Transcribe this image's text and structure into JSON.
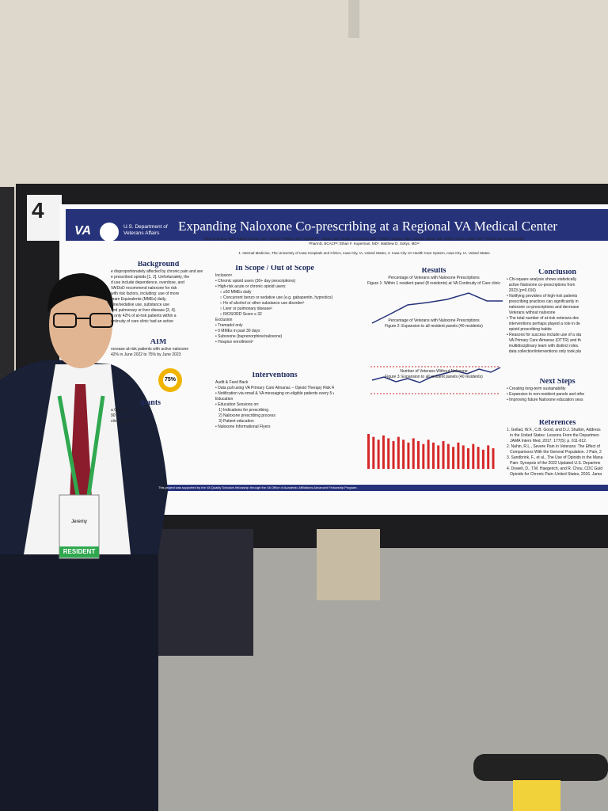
{
  "poster": {
    "number": "4",
    "header": {
      "logo": "VA",
      "agency": "U.S. Department of Veterans Affairs",
      "title": "Expanding Naloxone Co-prescribing at a Regional VA Medical Center",
      "authors": "Jeremy Zhang, MD¹; Kathie Zhang, MD¹; Joseph Phillips, MD¹; Michael C. Sauer, MD¹; Sarah Van Doren, MD¹; Patrick Watson, MD¹; Lauren Zabel, MD¹ Emily Peters, MSN, RN²; Yvonne De Hoover Koch, PharmD, BCACP²; Ethan F. Kuperman, MD¹; Matthew D. Soltys, MD¹²",
      "affiliations": "1. Internal Medicine, The University of Iowa Hospitals and Clinics, Iowa City, IA, United States, 2. Iowa City VA Health Care System, Iowa City, IA, United States"
    },
    "sections": [
      {
        "heading": "Background",
        "lines": [
          "e disproportionately affected by chronic pain and are",
          "e prescribed opioids [1, 2]. Unfortunately, the",
          "d use include dependence, overdose, and",
          "VA/DoD recommend naloxone for risk",
          "with risk factors, including: use of more",
          "gram Equivalents (MMEs) daily,",
          "pine/sedative use, substance use",
          "and pulmonary or liver disease [3, 4].",
          "d only 42% of at-risk patients within a",
          "ontinuity of care clinic had an active"
        ]
      },
      {
        "heading": "AIM",
        "lines": [
          "ncrease at-risk patients with active naloxone",
          "42% in June 2022 to 75% by June 2023"
        ]
      },
      {
        "heading": "ipants",
        "lines": [
          "a Glance",
          "90",
          "ctive Opioid Rx"
        ]
      },
      {
        "heading": "In Scope / Out of Scope",
        "lines": [
          "Inclusion¹",
          "• Chronic opioid users (30+ day prescriptions)",
          "• High-risk acute or chronic opioid users:",
          "    ○ ≥50 MMEs daily",
          "    ○ Concurrent benzo or sedative use (e.g. gabapentin, hypnotics)",
          "    ○ Hx of alcohol or other substance use disorder²",
          "    ○ Liver or pulmonary disease²",
          "    ○ RIOSORD Score ≥ 32",
          "Exclusion",
          "• Tramadol only",
          "• 0 MMEs in past 30 days",
          "• Suboxone (buprenorphine/naloxone)",
          "• Hospice enrollment³"
        ]
      },
      {
        "heading": "Interventions",
        "lines": [
          "Audit & Feed Back",
          "• Data pull using VA Primary Care Almanac – Opioid Therapy Risk Report (OTRR)",
          "• Notification via email & VA messaging on eligible patients every 5 weeks",
          "Education",
          "• Education Sessions on:",
          "   1) Indications for prescribing",
          "   2) Naloxone prescribing process",
          "   3) Patient education",
          "• Naloxone Informational Flyers"
        ]
      },
      {
        "heading": "Results",
        "lines": [
          "Percentage of Veterans with Naloxone Prescriptions",
          "Figure 1: Within 1 resident panel (8 residents) at VA Continuity of Care clinic",
          "Percentage of Veterans with Naloxone Prescriptions",
          "Figure 2: Expansion to all resident panels (40 residents)",
          "Number of Veterans Without Naloxone",
          "Figure 3: Expansion to all resident panels (40 residents)"
        ]
      },
      {
        "heading": "Conclusion",
        "lines": [
          "• Chi-square analysis shows statistically",
          "  active Naloxone co-prescriptions from",
          "  2023 (p=0.016)",
          "• Notifying providers of high-risk patients",
          "  prescribing practices can significantly in",
          "  naloxone co-prescriptions and decrease",
          "  Veterans without naloxone",
          "• The total number of at-risk veterans dec",
          "  interventions perhaps played a role in de",
          "  opioid prescribing habits",
          "• Reasons for success include use of a sta",
          "  VA Primary Care Almanac (OTTR) and th",
          "  multidisciplinary team with distinct roles.",
          "  data collection/interventions only took pla"
        ]
      },
      {
        "heading": "Next Steps",
        "lines": [
          "• Creating long-term sustainability",
          "• Expansion to non-resident panels and othe",
          "• Improving future Naloxone education sess"
        ]
      },
      {
        "heading": "References",
        "lines": [
          "1. Gellad, W.F., C.B. Good, and D.J. Shulkin, Address",
          "   in the United States: Lessons From the Departmen",
          "   JAMA Intern Med, 2017. 177(5): p. 611-612.",
          "2. Nahin, R.L., Severe Pain in Veterans: The Effect of",
          "   Comparisons With the General Population. J Pain, 2",
          "3. Sandbrink, F., et al., The Use of Opioids in the Mana",
          "   Pain: Synopsis of the 2022 Updated U.S. Departme",
          "4. Dowell, D., T.M. Haegerich, and R. Chou, CDC Guid",
          "   Opioids for Chronic Pain–United States, 2016. Jama"
        ]
      }
    ],
    "donut": "75%",
    "footer": "This project was supported by the VA Quality Scholars fellowship through the VA Office of Academic Affiliations Advanced Fellowship Program."
  },
  "badge": {
    "name": "Jeremy",
    "role": "RESIDENT"
  }
}
